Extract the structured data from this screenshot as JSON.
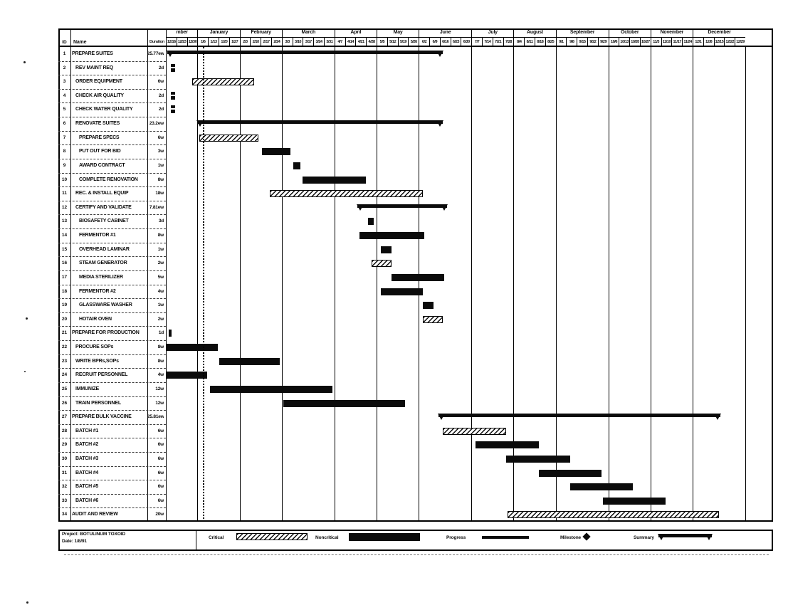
{
  "footer": {
    "project_label": "Project: BOTULINUM TOXOID",
    "date_label": "Date: 1/8/91"
  },
  "table": {
    "headers": {
      "id": "ID",
      "name": "Name",
      "duration": "Duration"
    }
  },
  "timeline": {
    "months": [
      {
        "label": "mber",
        "weeks": 3
      },
      {
        "label": "January",
        "weeks": 4
      },
      {
        "label": "February",
        "weeks": 4
      },
      {
        "label": "March",
        "weeks": 5
      },
      {
        "label": "April",
        "weeks": 4
      },
      {
        "label": "May",
        "weeks": 4
      },
      {
        "label": "June",
        "weeks": 5
      },
      {
        "label": "July",
        "weeks": 4
      },
      {
        "label": "August",
        "weeks": 4
      },
      {
        "label": "September",
        "weeks": 5
      },
      {
        "label": "October",
        "weeks": 4
      },
      {
        "label": "November",
        "weeks": 4
      },
      {
        "label": "December",
        "weeks": 5
      }
    ],
    "week_labels": [
      "12/16",
      "12/23",
      "12/30",
      "1/6",
      "1/13",
      "1/20",
      "1/27",
      "2/3",
      "2/10",
      "2/17",
      "2/24",
      "3/3",
      "3/10",
      "3/17",
      "3/24",
      "3/31",
      "4/7",
      "4/14",
      "4/21",
      "4/28",
      "5/5",
      "5/12",
      "5/19",
      "5/26",
      "6/2",
      "6/9",
      "6/16",
      "6/23",
      "6/30",
      "7/7",
      "7/14",
      "7/21",
      "7/28",
      "8/4",
      "8/11",
      "8/18",
      "8/25",
      "9/1",
      "9/8",
      "9/15",
      "9/22",
      "9/29",
      "10/6",
      "10/13",
      "10/20",
      "10/27",
      "11/3",
      "11/10",
      "11/17",
      "11/24",
      "12/1",
      "12/8",
      "12/15",
      "12/22",
      "12/29"
    ]
  },
  "legend": [
    {
      "label": "Critical",
      "style": "critical"
    },
    {
      "label": "Noncritical",
      "style": "noncritical"
    },
    {
      "label": "Progress",
      "style": "progress"
    },
    {
      "label": "Milestone",
      "style": "milestone"
    },
    {
      "label": "Summary",
      "style": "summary"
    }
  ],
  "chart_data": {
    "type": "gantt",
    "time_axis": {
      "start_week_label": "12/16",
      "end_week_label": "12/29",
      "weeks_total": 55
    },
    "status_line_week": 3.5,
    "tasks": [
      {
        "id": "1",
        "name": "PREPARE SUITES",
        "duration": "25.77ew",
        "indent": 0,
        "bar": {
          "style": "summary",
          "start": 0.15,
          "end": 26.3
        }
      },
      {
        "id": "2",
        "name": "REV MAINT REQ",
        "duration": "2d",
        "indent": 1,
        "bar": {
          "style": "split",
          "start": 0.45,
          "end": 0.9
        }
      },
      {
        "id": "3",
        "name": "ORDER EQUIPMENT",
        "duration": "6w",
        "indent": 1,
        "bar": {
          "style": "critical",
          "start": 2.5,
          "end": 8.4
        }
      },
      {
        "id": "4",
        "name": "CHECK AIR QUALITY",
        "duration": "2d",
        "indent": 1,
        "bar": {
          "style": "split",
          "start": 0.45,
          "end": 0.9
        }
      },
      {
        "id": "5",
        "name": "CHECK WATER QUALITY",
        "duration": "2d",
        "indent": 1,
        "bar": {
          "style": "split",
          "start": 0.45,
          "end": 0.9
        }
      },
      {
        "id": "6",
        "name": "RENOVATE SUITES",
        "duration": "23.2ew",
        "indent": 1,
        "bar": {
          "style": "summary",
          "start": 3.0,
          "end": 26.3
        }
      },
      {
        "id": "7",
        "name": "PREPARE SPECS",
        "duration": "6w",
        "indent": 2,
        "bar": {
          "style": "critical",
          "start": 3.2,
          "end": 8.8
        }
      },
      {
        "id": "8",
        "name": "PUT OUT FOR BID",
        "duration": "3w",
        "indent": 2,
        "bar": {
          "style": "task",
          "start": 9.1,
          "end": 11.8
        }
      },
      {
        "id": "9",
        "name": "AWARD CONTRACT",
        "duration": "1w",
        "indent": 2,
        "bar": {
          "style": "task",
          "start": 12.1,
          "end": 12.8
        }
      },
      {
        "id": "10",
        "name": "COMPLETE RENOVATION",
        "duration": "8w",
        "indent": 2,
        "bar": {
          "style": "task",
          "start": 13.0,
          "end": 19.0
        }
      },
      {
        "id": "11",
        "name": "REC. & INSTALL EQUIP",
        "duration": "18w",
        "indent": 1,
        "bar": {
          "style": "critical",
          "start": 9.85,
          "end": 24.4
        }
      },
      {
        "id": "12",
        "name": "CERTIFY AND VALIDATE",
        "duration": "7.81ew",
        "indent": 1,
        "bar": {
          "style": "summary",
          "start": 18.2,
          "end": 26.7
        }
      },
      {
        "id": "13",
        "name": "BIOSAFETY CABINET",
        "duration": "3d",
        "indent": 2,
        "bar": {
          "style": "task",
          "start": 19.2,
          "end": 19.7
        }
      },
      {
        "id": "14",
        "name": "FERMENTOR #1",
        "duration": "8w",
        "indent": 2,
        "bar": {
          "style": "task",
          "start": 18.4,
          "end": 24.5
        }
      },
      {
        "id": "15",
        "name": "OVERHEAD LAMINAR",
        "duration": "1w",
        "indent": 2,
        "bar": {
          "style": "task",
          "start": 20.4,
          "end": 21.4
        }
      },
      {
        "id": "16",
        "name": "STEAM GENERATOR",
        "duration": "2w",
        "indent": 2,
        "bar": {
          "style": "critical",
          "start": 19.5,
          "end": 21.4
        }
      },
      {
        "id": "17",
        "name": "MEDIA STERILIZER",
        "duration": "5w",
        "indent": 2,
        "bar": {
          "style": "task",
          "start": 21.4,
          "end": 26.4
        }
      },
      {
        "id": "18",
        "name": "FERMENTOR #2",
        "duration": "4w",
        "indent": 2,
        "bar": {
          "style": "task",
          "start": 20.4,
          "end": 24.4
        }
      },
      {
        "id": "19",
        "name": "GLASSWARE WASHER",
        "duration": "1w",
        "indent": 2,
        "bar": {
          "style": "task",
          "start": 24.4,
          "end": 25.4
        }
      },
      {
        "id": "20",
        "name": "HOTAIR OVEN",
        "duration": "2w",
        "indent": 2,
        "bar": {
          "style": "critical",
          "start": 24.4,
          "end": 26.3
        }
      },
      {
        "id": "21",
        "name": "PREPARE FOR PRODUCTION",
        "duration": "1d",
        "indent": 0,
        "bar": {
          "style": "task",
          "start": 0.3,
          "end": 0.55
        }
      },
      {
        "id": "22",
        "name": "PROCURE SOPs",
        "duration": "8w",
        "indent": 1,
        "bar": {
          "style": "task",
          "start": 0.05,
          "end": 4.9
        }
      },
      {
        "id": "23",
        "name": "WRITE BPRs,SOPs",
        "duration": "8w",
        "indent": 1,
        "bar": {
          "style": "task",
          "start": 5.1,
          "end": 10.8
        }
      },
      {
        "id": "24",
        "name": "RECRUIT PERSONNEL",
        "duration": "4w",
        "indent": 1,
        "bar": {
          "style": "task",
          "start": 0.05,
          "end": 3.9
        }
      },
      {
        "id": "25",
        "name": "IMMUNIZE",
        "duration": "12w",
        "indent": 1,
        "bar": {
          "style": "task",
          "start": 4.2,
          "end": 15.8
        }
      },
      {
        "id": "26",
        "name": "TRAIN PERSONNEL",
        "duration": "12w",
        "indent": 1,
        "bar": {
          "style": "task",
          "start": 11.15,
          "end": 22.7
        }
      },
      {
        "id": "27",
        "name": "PREPARE BULK VACCINE",
        "duration": "25.81ew",
        "indent": 0,
        "bar": {
          "style": "summary",
          "start": 25.85,
          "end": 52.65
        }
      },
      {
        "id": "28",
        "name": "BATCH #1",
        "duration": "6w",
        "indent": 1,
        "bar": {
          "style": "critical",
          "start": 26.3,
          "end": 32.3
        }
      },
      {
        "id": "29",
        "name": "BATCH #2",
        "duration": "6w",
        "indent": 1,
        "bar": {
          "style": "task",
          "start": 29.4,
          "end": 35.4
        }
      },
      {
        "id": "30",
        "name": "BATCH #3",
        "duration": "6w",
        "indent": 1,
        "bar": {
          "style": "task",
          "start": 32.3,
          "end": 38.35
        }
      },
      {
        "id": "31",
        "name": "BATCH #4",
        "duration": "6w",
        "indent": 1,
        "bar": {
          "style": "task",
          "start": 35.4,
          "end": 41.35
        }
      },
      {
        "id": "32",
        "name": "BATCH #5",
        "duration": "6w",
        "indent": 1,
        "bar": {
          "style": "task",
          "start": 38.35,
          "end": 44.3
        }
      },
      {
        "id": "33",
        "name": "BATCH #6",
        "duration": "6w",
        "indent": 1,
        "bar": {
          "style": "task",
          "start": 41.5,
          "end": 47.4
        }
      },
      {
        "id": "34",
        "name": "AUDIT AND REVIEW",
        "duration": "20w",
        "indent": 0,
        "bar": {
          "style": "critical",
          "start": 32.4,
          "end": 52.5
        }
      }
    ]
  }
}
